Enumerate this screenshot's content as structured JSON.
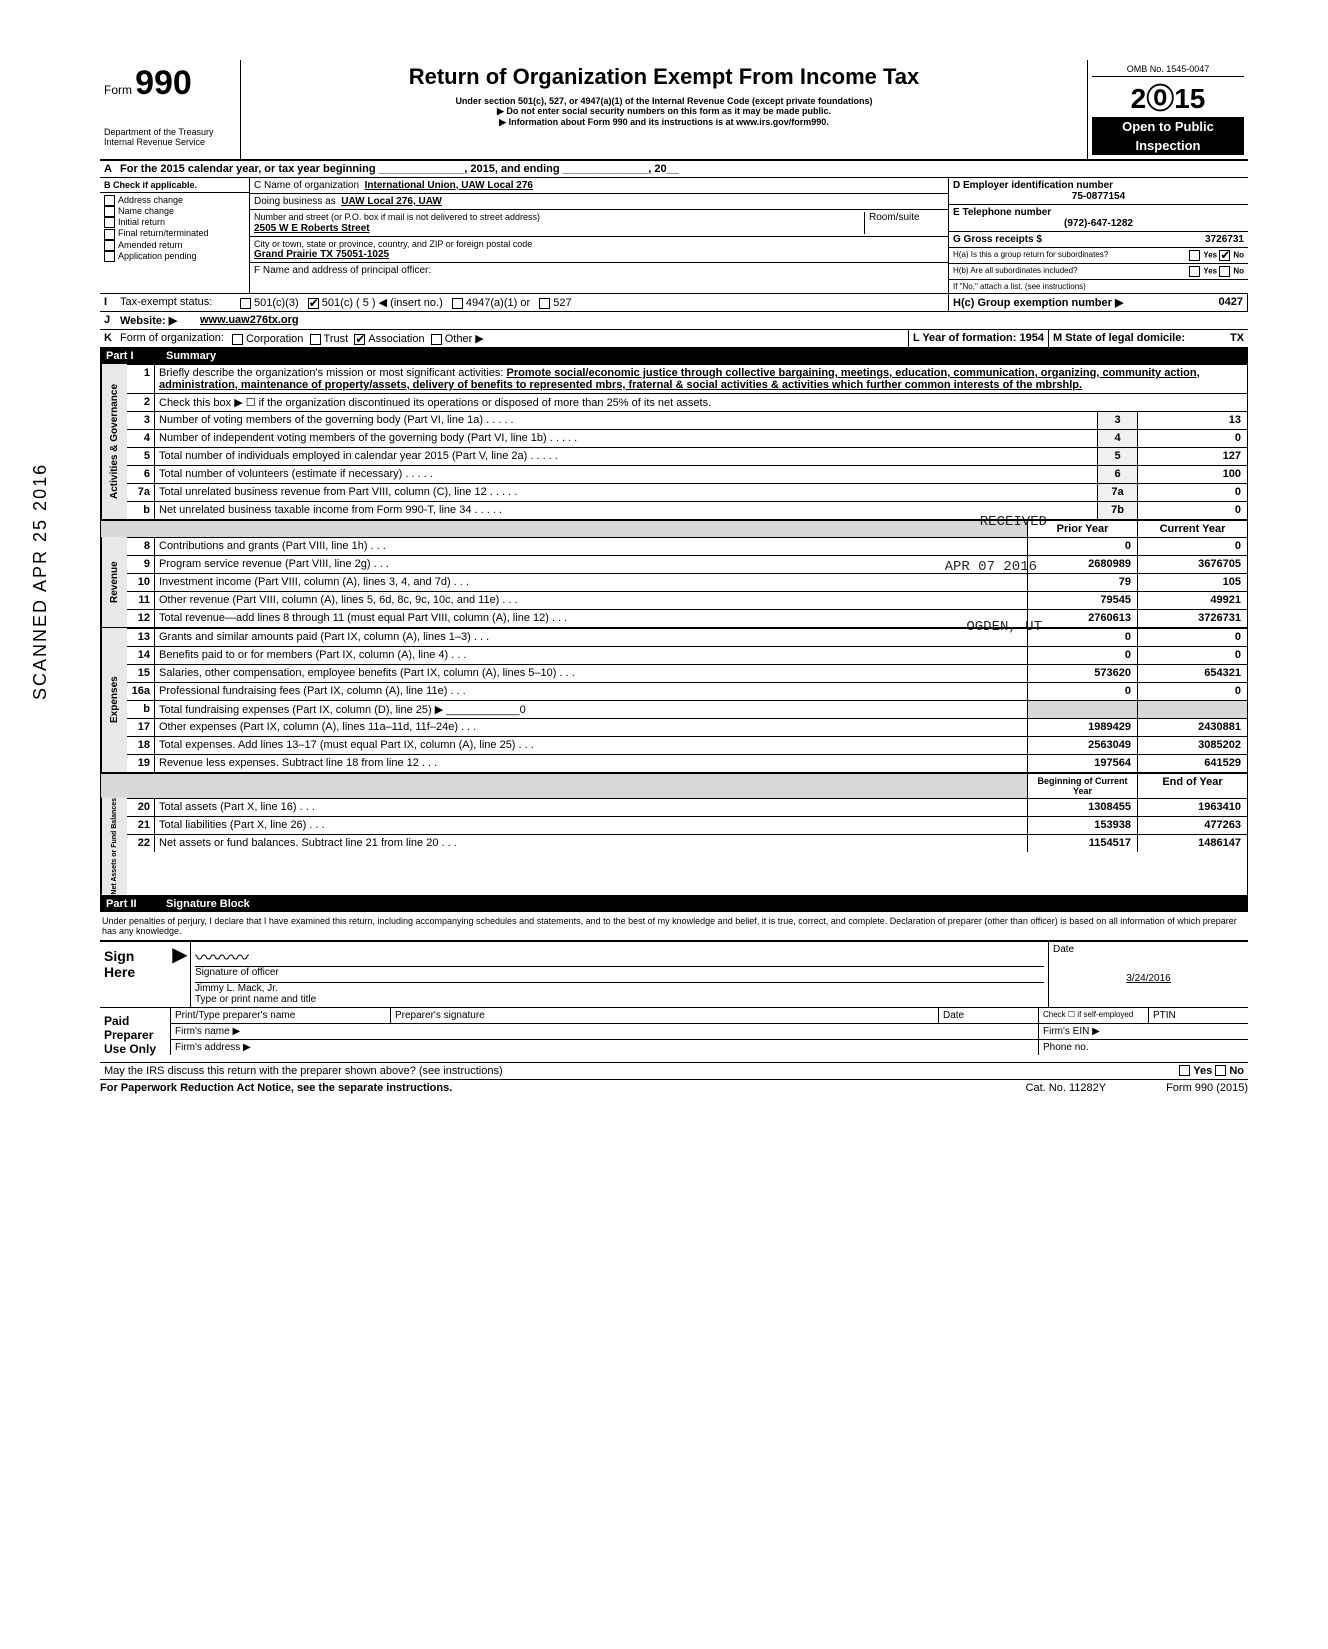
{
  "side_stamp": "SCANNED APR 25 2016",
  "header": {
    "form_label": "Form",
    "form_no": "990",
    "dept": "Department of the Treasury",
    "irs": "Internal Revenue Service",
    "title": "Return of Organization Exempt From Income Tax",
    "sub1": "Under section 501(c), 527, or 4947(a)(1) of the Internal Revenue Code (except private foundations)",
    "sub2": "▶ Do not enter social security numbers on this form as it may be made public.",
    "sub3": "▶ Information about Form 990 and its instructions is at www.irs.gov/form990.",
    "omb": "OMB No. 1545-0047",
    "year": "2015",
    "open": "Open to Public",
    "insp": "Inspection"
  },
  "line_a": "For the 2015 calendar year, or tax year beginning ______________, 2015, and ending ______________, 20__",
  "b_checks": [
    "Address change",
    "Name change",
    "Initial return",
    "Final return/terminated",
    "Amended return",
    "Application pending"
  ],
  "org": {
    "c_lbl": "C Name of organization",
    "c_val": "International Union, UAW Local 276",
    "dba_lbl": "Doing business as",
    "dba_val": "UAW Local 276, UAW",
    "addr_lbl": "Number and street (or P.O. box if mail is not delivered to street address)",
    "addr_val": "2505 W E Roberts Street",
    "room_lbl": "Room/suite",
    "city_lbl": "City or town, state or province, country, and ZIP or foreign postal code",
    "city_val": "Grand Prairie TX 75051-1025",
    "f_lbl": "F Name and address of principal officer:"
  },
  "right": {
    "d_lbl": "D Employer identification number",
    "d_val": "75-0877154",
    "e_lbl": "E Telephone number",
    "e_val": "(972)-647-1282",
    "g_lbl": "G Gross receipts $",
    "g_val": "3726731",
    "ha": "H(a) Is this a group return for subordinates?",
    "hb": "H(b) Are all subordinates included?",
    "hno": "If \"No,\" attach a list. (see instructions)",
    "hc": "H(c) Group exemption number ▶",
    "hc_val": "0427"
  },
  "i_lbl": "Tax-exempt status:",
  "i_opts": [
    "501(c)(3)",
    "501(c) (  5  ) ◀ (insert no.)",
    "4947(a)(1) or",
    "527"
  ],
  "j_lbl": "Website: ▶",
  "j_val": "www.uaw276tx.org",
  "k_lbl": "Form of organization:",
  "k_opts": [
    "Corporation",
    "Trust",
    "Association",
    "Other ▶"
  ],
  "k_l": "L Year of formation:",
  "k_l_val": "1954",
  "k_m": "M State of legal domicile:",
  "k_m_val": "TX",
  "part1": {
    "num": "Part I",
    "title": "Summary"
  },
  "mission_lbl": "Briefly describe the organization's mission or most significant activities:",
  "mission": "Promote social/economic justice through collective bargaining, meetings, education, communication, organizing, community action, administration, maintenance of property/assets, delivery of benefits to represented mbrs, fraternal & social activities & activities which further common interests of the mbrshlp.",
  "line2": "Check this box ▶ ☐ if the organization discontinued its operations or disposed of more than 25% of its net assets.",
  "gov_rows": [
    {
      "n": "3",
      "d": "Number of voting members of the governing body (Part VI, line 1a)",
      "c": "3",
      "v": "13"
    },
    {
      "n": "4",
      "d": "Number of independent voting members of the governing body (Part VI, line 1b)",
      "c": "4",
      "v": "0"
    },
    {
      "n": "5",
      "d": "Total number of individuals employed in calendar year 2015 (Part V, line 2a)",
      "c": "5",
      "v": "127"
    },
    {
      "n": "6",
      "d": "Total number of volunteers (estimate if necessary)",
      "c": "6",
      "v": "100"
    },
    {
      "n": "7a",
      "d": "Total unrelated business revenue from Part VIII, column (C), line 12",
      "c": "7a",
      "v": "0"
    },
    {
      "n": "b",
      "d": "Net unrelated business taxable income from Form 990-T, line 34",
      "c": "7b",
      "v": "0"
    }
  ],
  "py_hdr": "Prior Year",
  "cy_hdr": "Current Year",
  "rev_rows": [
    {
      "n": "8",
      "d": "Contributions and grants (Part VIII, line 1h)",
      "p": "0",
      "c": "0"
    },
    {
      "n": "9",
      "d": "Program service revenue (Part VIII, line 2g)",
      "p": "2680989",
      "c": "3676705"
    },
    {
      "n": "10",
      "d": "Investment income (Part VIII, column (A), lines 3, 4, and 7d)",
      "p": "79",
      "c": "105"
    },
    {
      "n": "11",
      "d": "Other revenue (Part VIII, column (A), lines 5, 6d, 8c, 9c, 10c, and 11e)",
      "p": "79545",
      "c": "49921"
    },
    {
      "n": "12",
      "d": "Total revenue—add lines 8 through 11 (must equal Part VIII, column (A), line 12)",
      "p": "2760613",
      "c": "3726731"
    }
  ],
  "exp_rows": [
    {
      "n": "13",
      "d": "Grants and similar amounts paid (Part IX, column (A), lines 1–3)",
      "p": "0",
      "c": "0"
    },
    {
      "n": "14",
      "d": "Benefits paid to or for members (Part IX, column (A), line 4)",
      "p": "0",
      "c": "0"
    },
    {
      "n": "15",
      "d": "Salaries, other compensation, employee benefits (Part IX, column (A), lines 5–10)",
      "p": "573620",
      "c": "654321"
    },
    {
      "n": "16a",
      "d": "Professional fundraising fees (Part IX, column (A), line 11e)",
      "p": "0",
      "c": "0"
    },
    {
      "n": "b",
      "d": "Total fundraising expenses (Part IX, column (D), line 25) ▶ ____________0",
      "p": "",
      "c": ""
    },
    {
      "n": "17",
      "d": "Other expenses (Part IX, column (A), lines 11a–11d, 11f–24e)",
      "p": "1989429",
      "c": "2430881"
    },
    {
      "n": "18",
      "d": "Total expenses. Add lines 13–17 (must equal Part IX, column (A), line 25)",
      "p": "2563049",
      "c": "3085202"
    },
    {
      "n": "19",
      "d": "Revenue less expenses. Subtract line 18 from line 12",
      "p": "197564",
      "c": "641529"
    }
  ],
  "na_hdr1": "Beginning of Current Year",
  "na_hdr2": "End of Year",
  "na_rows": [
    {
      "n": "20",
      "d": "Total assets (Part X, line 16)",
      "p": "1308455",
      "c": "1963410"
    },
    {
      "n": "21",
      "d": "Total liabilities (Part X, line 26)",
      "p": "153938",
      "c": "477263"
    },
    {
      "n": "22",
      "d": "Net assets or fund balances. Subtract line 21 from line 20",
      "p": "1154517",
      "c": "1486147"
    }
  ],
  "part2": {
    "num": "Part II",
    "title": "Signature Block"
  },
  "perjury": "Under penalties of perjury, I declare that I have examined this return, including accompanying schedules and statements, and to the best of my knowledge and belief, it is true, correct, and complete. Declaration of preparer (other than officer) is based on all information of which preparer has any knowledge.",
  "sign": {
    "here": "Sign Here",
    "sig_lbl": "Signature of officer",
    "date_lbl": "Date",
    "name": "Jimmy L. Mack, Jr.",
    "name_lbl": "Type or print name and title",
    "date": "3/24/2016"
  },
  "paid": {
    "lbl": "Paid Preparer Use Only",
    "c1": "Print/Type preparer's name",
    "c2": "Preparer's signature",
    "c3": "Date",
    "c4": "Check ☐ if self-employed",
    "c5": "PTIN",
    "firm": "Firm's name ▶",
    "ein": "Firm's EIN ▶",
    "addr": "Firm's address ▶",
    "phone": "Phone no."
  },
  "irs_q": "May the IRS discuss this return with the preparer shown above? (see instructions)",
  "foot1": "For Paperwork Reduction Act Notice, see the separate instructions.",
  "foot2": "Cat. No. 11282Y",
  "foot3": "Form 990 (2015)",
  "stamps": {
    "rec": "RECEIVED",
    "apr": "APR 07 2016",
    "ogd": "OGDEN, UT"
  },
  "side_labels": {
    "gov": "Activities & Governance",
    "rev": "Revenue",
    "exp": "Expenses",
    "na": "Net Assets or Fund Balances"
  },
  "b_lbl": "B  Check if applicable.",
  "yes": "Yes",
  "no": "No"
}
